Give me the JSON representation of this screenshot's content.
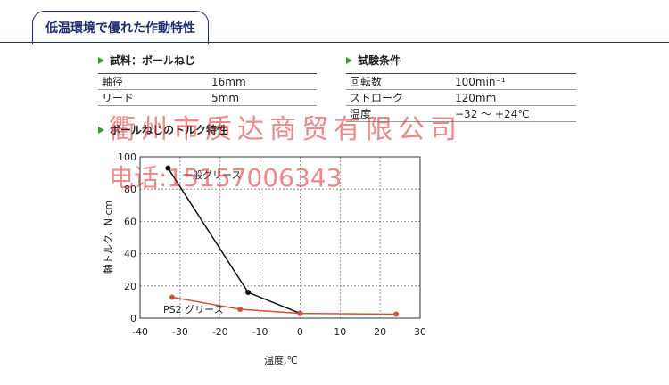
{
  "header": {
    "title": "低温環境で優れた作動特性"
  },
  "sample": {
    "heading": "試料：ボールねじ",
    "rows": [
      [
        "軸径",
        "16mm"
      ],
      [
        "リード",
        "5mm"
      ]
    ]
  },
  "conditions": {
    "heading": "試験条件",
    "rows": [
      [
        "回転数",
        "100min⁻¹"
      ],
      [
        "ストローク",
        "120mm"
      ],
      [
        "温度",
        "−32 ～ +24℃"
      ]
    ]
  },
  "watermark": {
    "company": "衢州市质达商贸有限公司",
    "phone": "电话:15157006343"
  },
  "chart_heading": "ボールねじのトルク特性",
  "chart_data": {
    "type": "line",
    "x_label": "温度,℃",
    "y_label": "軸トルク、N·cm",
    "xlim": [
      -40,
      30
    ],
    "xticks": [
      -40,
      -30,
      -20,
      -10,
      0,
      10,
      20,
      30
    ],
    "ylim": [
      0,
      100
    ],
    "yticks": [
      0,
      20,
      40,
      60,
      80,
      100
    ],
    "grid": true,
    "series": [
      {
        "name": "一般グリース",
        "color": "#111111",
        "x": [
          -33,
          -13,
          0
        ],
        "values": [
          93,
          16,
          3
        ]
      },
      {
        "name": "PS2 グリース",
        "color": "#d0533a",
        "x": [
          -32,
          -15,
          0,
          24
        ],
        "values": [
          13,
          5.5,
          3,
          2.5
        ]
      }
    ]
  }
}
